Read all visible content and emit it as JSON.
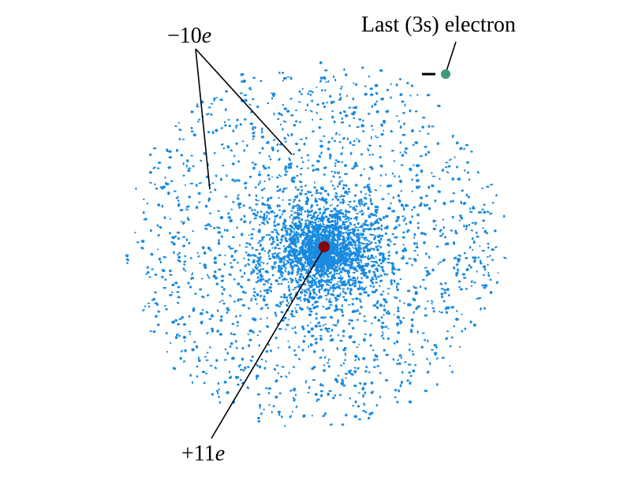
{
  "labels": {
    "core_charge": {
      "sign": "−",
      "number": "10",
      "unit": "e"
    },
    "nucleus_charge": {
      "sign": "+",
      "number": "11",
      "unit": "e"
    },
    "valence_electron": "Last (3s) electron",
    "valence_sign": "−"
  },
  "colors": {
    "electron_cloud": "#1a8ae0",
    "nucleus": "#8b0000",
    "valence_electron": "#3a9a7a",
    "pointer_lines": "#000000"
  }
}
